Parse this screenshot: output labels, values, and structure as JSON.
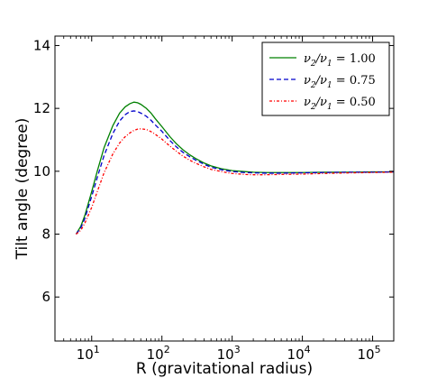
{
  "chart_data": {
    "type": "line",
    "title": "",
    "xlabel": "R (gravitational radius)",
    "ylabel": "Tilt angle (degree)",
    "xscale": "log",
    "xlim": [
      3,
      200000
    ],
    "ylim": [
      4.6,
      14.3
    ],
    "yticks": [
      6,
      8,
      10,
      12,
      14
    ],
    "ytick_labels": [
      "6",
      "8",
      "10",
      "12",
      "14"
    ],
    "xticks": [
      10,
      100,
      1000,
      10000,
      100000
    ],
    "xtick_labels": [
      {
        "base": "10",
        "exp": "1"
      },
      {
        "base": "10",
        "exp": "2"
      },
      {
        "base": "10",
        "exp": "3"
      },
      {
        "base": "10",
        "exp": "4"
      },
      {
        "base": "10",
        "exp": "5"
      }
    ],
    "grid": false,
    "legend_position": "top-right",
    "series": [
      {
        "name": "ν2/ν1 = 1.00",
        "color": "#008000",
        "style": "solid",
        "x": [
          6,
          7,
          8,
          10,
          12,
          15,
          20,
          25,
          30,
          35,
          40,
          45,
          50,
          60,
          70,
          80,
          100,
          130,
          160,
          200,
          250,
          300,
          400,
          500,
          700,
          1000,
          1500,
          2000,
          3000,
          5000,
          10000,
          20000,
          50000,
          100000,
          200000
        ],
        "y": [
          8.0,
          8.25,
          8.6,
          9.35,
          10.0,
          10.75,
          11.45,
          11.85,
          12.05,
          12.15,
          12.2,
          12.18,
          12.13,
          12.0,
          11.85,
          11.68,
          11.42,
          11.1,
          10.88,
          10.68,
          10.52,
          10.41,
          10.26,
          10.17,
          10.08,
          10.02,
          9.99,
          9.97,
          9.96,
          9.96,
          9.96,
          9.97,
          9.97,
          9.98,
          9.98
        ]
      },
      {
        "name": "ν2/ν1 = 0.75",
        "color": "#0000cc",
        "style": "dashed",
        "x": [
          6,
          7,
          8,
          10,
          12,
          15,
          20,
          25,
          30,
          35,
          40,
          45,
          50,
          60,
          70,
          80,
          100,
          130,
          160,
          200,
          250,
          300,
          400,
          500,
          700,
          1000,
          1500,
          2000,
          3000,
          5000,
          10000,
          20000,
          50000,
          100000,
          200000
        ],
        "y": [
          8.0,
          8.2,
          8.5,
          9.2,
          9.8,
          10.5,
          11.2,
          11.6,
          11.8,
          11.9,
          11.92,
          11.9,
          11.85,
          11.75,
          11.62,
          11.48,
          11.27,
          10.98,
          10.78,
          10.6,
          10.46,
          10.36,
          10.22,
          10.13,
          10.05,
          9.99,
          9.96,
          9.95,
          9.94,
          9.94,
          9.95,
          9.96,
          9.97,
          9.97,
          9.98
        ]
      },
      {
        "name": "ν2/ν1 = 0.50",
        "color": "#ff0000",
        "style": "dash-dot",
        "x": [
          6,
          7,
          8,
          10,
          12,
          15,
          20,
          25,
          30,
          35,
          40,
          45,
          50,
          60,
          70,
          80,
          100,
          130,
          160,
          200,
          250,
          300,
          400,
          500,
          700,
          1000,
          1500,
          2000,
          3000,
          5000,
          10000,
          20000,
          50000,
          100000,
          200000
        ],
        "y": [
          8.0,
          8.12,
          8.35,
          8.85,
          9.35,
          9.95,
          10.55,
          10.9,
          11.1,
          11.22,
          11.3,
          11.34,
          11.35,
          11.33,
          11.26,
          11.18,
          11.02,
          10.8,
          10.64,
          10.48,
          10.35,
          10.26,
          10.14,
          10.06,
          9.99,
          9.93,
          9.9,
          9.89,
          9.89,
          9.9,
          9.91,
          9.93,
          9.95,
          9.96,
          9.97
        ]
      }
    ],
    "legend": {
      "entries": [
        {
          "left": "ν",
          "sub": "2",
          "mid": "/ν",
          "sub2": "1",
          "right": " = 1.00"
        },
        {
          "left": "ν",
          "sub": "2",
          "mid": "/ν",
          "sub2": "1",
          "right": " = 0.75"
        },
        {
          "left": "ν",
          "sub": "2",
          "mid": "/ν",
          "sub2": "1",
          "right": " = 0.50"
        }
      ]
    }
  }
}
